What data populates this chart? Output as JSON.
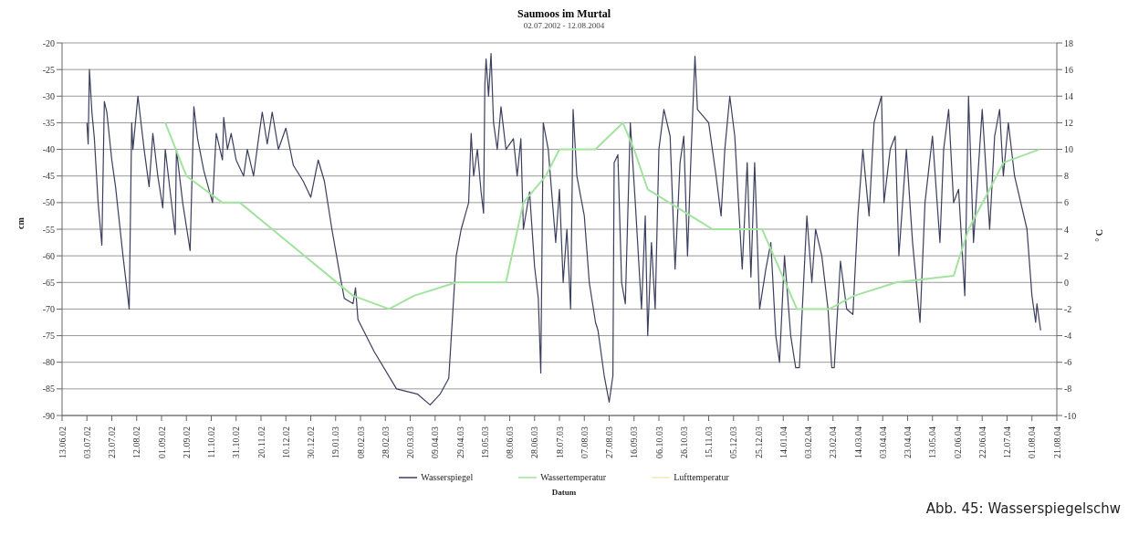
{
  "chart_data": {
    "type": "line",
    "title": "Saumoos im Murtal",
    "subtitle": "02.07.2002 - 12.08.2004",
    "xlabel": "Datum",
    "ylabel": "cm",
    "y2label": "° C",
    "annotations": [
      "Abb. 45: Wasserspiegelschw"
    ],
    "xlim": [
      "2002-06-13",
      "2004-08-21"
    ],
    "xticks": [
      {
        "value": "2002-06-13",
        "label": "13.06.02"
      },
      {
        "value": "2002-07-03",
        "label": "03.07.02"
      },
      {
        "value": "2002-07-23",
        "label": "23.07.02"
      },
      {
        "value": "2002-08-12",
        "label": "12.08.02"
      },
      {
        "value": "2002-09-01",
        "label": "01.09.02"
      },
      {
        "value": "2002-09-21",
        "label": "21.09.02"
      },
      {
        "value": "2002-10-11",
        "label": "11.10.02"
      },
      {
        "value": "2002-10-31",
        "label": "31.10.02"
      },
      {
        "value": "2002-11-20",
        "label": "20.11.02"
      },
      {
        "value": "2002-12-10",
        "label": "10.12.02"
      },
      {
        "value": "2002-12-30",
        "label": "30.12.02"
      },
      {
        "value": "2003-01-19",
        "label": "19.01.03"
      },
      {
        "value": "2003-02-08",
        "label": "08.02.03"
      },
      {
        "value": "2003-02-28",
        "label": "28.02.03"
      },
      {
        "value": "2003-03-20",
        "label": "20.03.03"
      },
      {
        "value": "2003-04-09",
        "label": "09.04.03"
      },
      {
        "value": "2003-04-29",
        "label": "29.04.03"
      },
      {
        "value": "2003-05-19",
        "label": "19.05.03"
      },
      {
        "value": "2003-06-08",
        "label": "08.06.03"
      },
      {
        "value": "2003-06-28",
        "label": "28.06.03"
      },
      {
        "value": "2003-07-18",
        "label": "18.07.03"
      },
      {
        "value": "2003-08-07",
        "label": "07.08.03"
      },
      {
        "value": "2003-08-27",
        "label": "27.08.03"
      },
      {
        "value": "2003-09-16",
        "label": "16.09.03"
      },
      {
        "value": "2003-10-06",
        "label": "06.10.03"
      },
      {
        "value": "2003-10-26",
        "label": "26.10.03"
      },
      {
        "value": "2003-11-15",
        "label": "15.11.03"
      },
      {
        "value": "2003-12-05",
        "label": "05.12.03"
      },
      {
        "value": "2003-12-25",
        "label": "25.12.03"
      },
      {
        "value": "2004-01-14",
        "label": "14.01.04"
      },
      {
        "value": "2004-02-03",
        "label": "03.02.04"
      },
      {
        "value": "2004-02-23",
        "label": "23.02.04"
      },
      {
        "value": "2004-03-14",
        "label": "14.03.04"
      },
      {
        "value": "2004-04-03",
        "label": "03.04.04"
      },
      {
        "value": "2004-04-23",
        "label": "23.04.04"
      },
      {
        "value": "2004-05-13",
        "label": "13.05.04"
      },
      {
        "value": "2004-06-02",
        "label": "02.06.04"
      },
      {
        "value": "2004-06-22",
        "label": "22.06.04"
      },
      {
        "value": "2004-07-12",
        "label": "12.07.04"
      },
      {
        "value": "2004-08-01",
        "label": "01.08.04"
      },
      {
        "value": "2004-08-21",
        "label": "21.08.04"
      }
    ],
    "ylim": [
      -90,
      -20
    ],
    "yticks": [
      -90,
      -85,
      -80,
      -75,
      -70,
      -65,
      -60,
      -55,
      -50,
      -45,
      -40,
      -35,
      -30,
      -25,
      -20
    ],
    "y2lim": [
      -10,
      18
    ],
    "y2ticks": [
      -10,
      -8,
      -6,
      -4,
      -2,
      0,
      2,
      4,
      6,
      8,
      10,
      12,
      14,
      16,
      18
    ],
    "grid": "y",
    "legend": "bottom",
    "marker": "none",
    "line_style": "solid",
    "series": [
      {
        "name": "Wasserspiegel",
        "color": "#3b3f5e",
        "x": [
          "2002-07-03",
          "2002-07-04",
          "2002-07-05",
          "2002-07-07",
          "2002-07-09",
          "2002-07-12",
          "2002-07-15",
          "2002-07-17",
          "2002-07-19",
          "2002-07-23",
          "2002-07-26",
          "2002-08-01",
          "2002-08-06",
          "2002-08-08",
          "2002-08-09",
          "2002-08-13",
          "2002-08-18",
          "2002-08-22",
          "2002-08-25",
          "2002-08-29",
          "2002-09-02",
          "2002-09-04",
          "2002-09-08",
          "2002-09-12",
          "2002-09-13",
          "2002-09-18",
          "2002-09-24",
          "2002-09-27",
          "2002-09-30",
          "2002-10-05",
          "2002-10-12",
          "2002-10-15",
          "2002-10-20",
          "2002-10-21",
          "2002-10-24",
          "2002-10-27",
          "2002-10-31",
          "2002-11-06",
          "2002-11-09",
          "2002-11-14",
          "2002-11-18",
          "2002-11-21",
          "2002-11-25",
          "2002-11-29",
          "2002-12-04",
          "2002-12-10",
          "2002-12-16",
          "2002-12-24",
          "2002-12-30",
          "2003-01-05",
          "2003-01-10",
          "2003-01-16",
          "2003-01-22",
          "2003-01-26",
          "2003-02-02",
          "2003-02-04",
          "2003-02-06",
          "2003-02-19",
          "2003-03-09",
          "2003-03-26",
          "2003-04-05",
          "2003-04-13",
          "2003-04-20",
          "2003-04-26",
          "2003-04-30",
          "2003-05-06",
          "2003-05-08",
          "2003-05-10",
          "2003-05-13",
          "2003-05-16",
          "2003-05-18",
          "2003-05-19",
          "2003-05-20",
          "2003-05-22",
          "2003-05-24",
          "2003-05-26",
          "2003-05-29",
          "2003-06-01",
          "2003-06-05",
          "2003-06-11",
          "2003-06-14",
          "2003-06-17",
          "2003-06-19",
          "2003-06-24",
          "2003-06-28",
          "2003-07-01",
          "2003-07-03",
          "2003-07-05",
          "2003-07-09",
          "2003-07-15",
          "2003-07-18",
          "2003-07-21",
          "2003-07-24",
          "2003-07-27",
          "2003-07-29",
          "2003-08-01",
          "2003-08-07",
          "2003-08-11",
          "2003-08-16",
          "2003-08-18",
          "2003-08-23",
          "2003-08-27",
          "2003-08-30",
          "2003-08-31",
          "2003-09-03",
          "2003-09-06",
          "2003-09-09",
          "2003-09-13",
          "2003-09-17",
          "2003-09-22",
          "2003-09-25",
          "2003-09-27",
          "2003-09-30",
          "2003-10-03",
          "2003-10-06",
          "2003-10-10",
          "2003-10-15",
          "2003-10-19",
          "2003-10-23",
          "2003-10-26",
          "2003-10-29",
          "2003-11-01",
          "2003-11-04",
          "2003-11-06",
          "2003-11-15",
          "2003-11-21",
          "2003-11-25",
          "2003-11-28",
          "2003-12-02",
          "2003-12-06",
          "2003-12-09",
          "2003-12-12",
          "2003-12-16",
          "2003-12-19",
          "2003-12-22",
          "2003-12-26",
          "2003-12-31",
          "2004-01-04",
          "2004-01-08",
          "2004-01-11",
          "2004-01-15",
          "2004-01-20",
          "2004-01-24",
          "2004-01-27",
          "2004-02-02",
          "2004-02-06",
          "2004-02-09",
          "2004-02-14",
          "2004-02-19",
          "2004-02-22",
          "2004-02-24",
          "2004-02-29",
          "2004-03-05",
          "2004-03-10",
          "2004-03-14",
          "2004-03-18",
          "2004-03-23",
          "2004-03-27",
          "2004-04-02",
          "2004-04-04",
          "2004-04-09",
          "2004-04-13",
          "2004-04-16",
          "2004-04-22",
          "2004-04-27",
          "2004-05-03",
          "2004-05-07",
          "2004-05-13",
          "2004-05-19",
          "2004-05-22",
          "2004-05-26",
          "2004-05-30",
          "2004-06-03",
          "2004-06-08",
          "2004-06-11",
          "2004-06-15",
          "2004-06-22",
          "2004-06-28",
          "2004-07-02",
          "2004-07-06",
          "2004-07-09",
          "2004-07-13",
          "2004-07-18",
          "2004-07-23",
          "2004-07-28",
          "2004-08-01",
          "2004-08-04",
          "2004-08-05",
          "2004-08-08"
        ],
        "values": [
          -35,
          -39,
          -25,
          -33,
          -38,
          -50,
          -58,
          -31,
          -33,
          -42,
          -47,
          -60,
          -70,
          -35,
          -40,
          -30,
          -40,
          -47,
          -37,
          -45,
          -51,
          -40,
          -48,
          -56,
          -40,
          -50,
          -59,
          -32,
          -38,
          -44,
          -50,
          -37,
          -42,
          -34,
          -40,
          -37,
          -42,
          -45,
          -40,
          -45,
          -38,
          -33,
          -39,
          -33,
          -40,
          -36,
          -43,
          -46,
          -49,
          -42,
          -46,
          -55,
          -63,
          -68,
          -69,
          -66,
          -72,
          -78,
          -85,
          -86,
          -88,
          -86,
          -83,
          -60,
          -55,
          -50,
          -37,
          -45,
          -40,
          -48,
          -52,
          -28,
          -23,
          -30,
          -22,
          -35,
          -40,
          -32,
          -40,
          -38,
          -45,
          -38,
          -55,
          -48,
          -62,
          -68,
          -82,
          -35,
          -40,
          -57.5,
          -47.5,
          -65,
          -55,
          -70,
          -32.5,
          -45,
          -52.5,
          -65,
          -72.5,
          -74,
          -82.5,
          -87.5,
          -82.5,
          -42.5,
          -41,
          -65,
          -69,
          -35,
          -50,
          -70,
          -52.5,
          -75,
          -57.5,
          -70,
          -40,
          -32.5,
          -37.5,
          -62.5,
          -42.5,
          -37.5,
          -60,
          -40,
          -22.5,
          -32.5,
          -35,
          -45,
          -52.5,
          -40,
          -30,
          -37.5,
          -50,
          -62.5,
          -42.5,
          -64,
          -42.5,
          -70,
          -62.5,
          -57.5,
          -75,
          -80,
          -60,
          -75,
          -81,
          -81,
          -52.5,
          -65,
          -55,
          -60,
          -70,
          -81,
          -81,
          -61,
          -70,
          -71,
          -52.5,
          -40,
          -52.5,
          -35,
          -30,
          -50,
          -40,
          -37.5,
          -60,
          -40,
          -57.5,
          -72.5,
          -50,
          -37.5,
          -57.5,
          -40,
          -32.5,
          -50,
          -47.5,
          -67.5,
          -30,
          -57.5,
          -32.5,
          -55,
          -37.5,
          -32.5,
          -45,
          -35,
          -45,
          -50,
          -55,
          -67.5,
          -72.5,
          -69,
          -74
        ]
      },
      {
        "name": "Wassertemperatur",
        "color": "#a3e3a0",
        "axis": "y2",
        "x": [
          "2002-09-04",
          "2002-09-21",
          "2002-10-20",
          "2002-11-03",
          "2003-02-02",
          "2003-03-03",
          "2003-03-23",
          "2003-04-26",
          "2003-06-05",
          "2003-06-19",
          "2003-07-07",
          "2003-07-18",
          "2003-08-16",
          "2003-09-07",
          "2003-09-16",
          "2003-09-27",
          "2003-11-18",
          "2003-12-28",
          "2004-01-25",
          "2004-02-20",
          "2004-03-11",
          "2004-04-14",
          "2004-05-30",
          "2004-06-11",
          "2004-06-28",
          "2004-07-09",
          "2004-08-07"
        ],
        "values": [
          12,
          8,
          6,
          6,
          -1,
          -2,
          -1,
          0,
          0,
          6,
          8,
          10,
          10,
          12,
          10,
          7,
          4,
          4,
          -2,
          -2,
          -1,
          0,
          0.5,
          4,
          7,
          9,
          10
        ]
      },
      {
        "name": "Lufttemperatur",
        "color": "#f3eab0",
        "axis": "y2"
      }
    ]
  }
}
